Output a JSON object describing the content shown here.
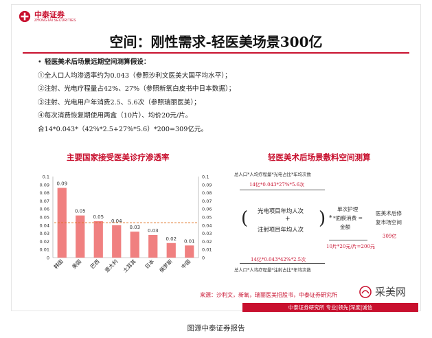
{
  "logo": {
    "name_cn": "中泰证券",
    "name_en": "ZHONGTAI SECURITIES",
    "icon": "zhongtai-logo-icon"
  },
  "title": "空间：刚性需求-轻医美场景300亿",
  "assumptions": {
    "heading": "轻医美术后场景远期空间测算假设：",
    "items": [
      "①全人口人均渗透率约为0.043（参照沙利文医美大国平均水平）；",
      "②注射、光电疗程量占42%、27%（参照新氧白皮书中日本数据）；",
      "③注射、光电用户年消费2.5、5.6次（参照瑞丽医美）；",
      "④每次消费恢复期使用两盒（10片）、均价20元/片。",
      "合14*0.043*（42%*2.5+27%*5.6）*200=309亿元。"
    ]
  },
  "left_chart_title": "主要国家接受医美诊疗渗透率",
  "right_diagram_title": "轻医美术后场景敷料空间测算",
  "chart_data": {
    "type": "bar",
    "title": "主要国家接受医美诊疗渗透率",
    "categories": [
      "韩国",
      "美国",
      "巴西",
      "意大利",
      "土耳其",
      "日本",
      "俄罗斯",
      "中国"
    ],
    "values": [
      0.09,
      0.05,
      0.05,
      0.04,
      0.03,
      0.03,
      0.02,
      0.01
    ],
    "heights": [
      0.086,
      0.052,
      0.045,
      0.04,
      0.032,
      0.028,
      0.018,
      0.015
    ],
    "data_labels": [
      "0.09",
      "0.05",
      "0.05",
      "0.04",
      "0.03",
      "0.03",
      "0.02",
      "0.01"
    ],
    "reference_line": 0.043,
    "ylim": [
      0,
      0.1
    ],
    "yticks": [
      "0",
      "0.01",
      "0.02",
      "0.03",
      "0.04",
      "0.05",
      "0.06",
      "0.07",
      "0.08",
      "0.09",
      "0.1"
    ],
    "bar_color": "#f08080",
    "line_color": "#e07020"
  },
  "diagram": {
    "top_formula": "总人口*人均疗程量*光电占比*年均次数",
    "top_value": "14亿*0.043*27%*5.6次",
    "box1_line1": "光电项目年均人次",
    "plus": "+",
    "box1_line2": "注射项目年均人次",
    "times": "*",
    "single_care_line1": "单次护理",
    "single_care_line2": "*面膜消费 =",
    "single_care_line3": "金额",
    "result_line1": "医美术后修",
    "result_line2": "复市场空间",
    "price_calc": "10片*20元/片=200元",
    "result_value": "309亿",
    "bottom_formula": "总人口*人均疗程量*注射占比*年均次数",
    "bottom_value": "14亿*0.043*42%*2.5次"
  },
  "source": "来源：沙利文，新氧，瑞丽医美招股书，中泰证券研究所",
  "footer_bar": "中泰证券研究所  专业|领先|深度|诚信",
  "watermark": "采美网",
  "caption": "图源中泰证券报告",
  "colors": {
    "brand_red": "#c8102e",
    "bar": "#f08080",
    "ref_line": "#e07020"
  }
}
